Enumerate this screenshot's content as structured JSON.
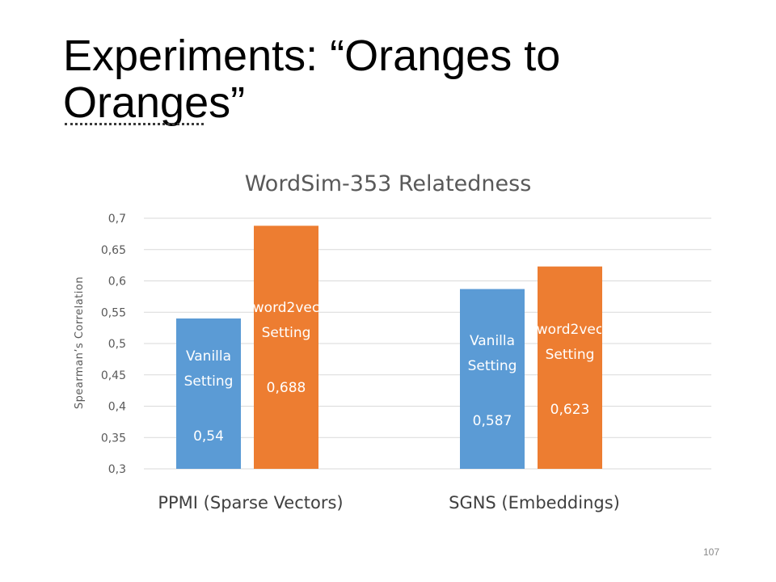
{
  "slide": {
    "title": "Experiments: “Oranges to Oranges”",
    "page_number": "107"
  },
  "colors": {
    "vanilla": "#5b9bd5",
    "word2vec": "#ed7d31",
    "grid": "#d9d9d9",
    "text": "#595959"
  },
  "chart_data": {
    "type": "bar",
    "title": "WordSim-353 Relatedness",
    "xlabel": "",
    "ylabel": "Spearman’s Correlation",
    "ylim": [
      0.3,
      0.7
    ],
    "yticks": [
      "0,3",
      "0,35",
      "0,4",
      "0,45",
      "0,5",
      "0,55",
      "0,6",
      "0,65",
      "0,7"
    ],
    "grid": true,
    "legend": "none",
    "categories": [
      "PPMI (Sparse Vectors)",
      "SGNS (Embeddings)"
    ],
    "series": [
      {
        "color": "#5b9bd5",
        "values": [
          0.54,
          0.587
        ],
        "labels": [
          [
            "Vanilla",
            "Setting",
            "0,54"
          ],
          [
            "Vanilla",
            "Setting",
            "0,587"
          ]
        ]
      },
      {
        "color": "#ed7d31",
        "values": [
          0.688,
          0.623
        ],
        "labels": [
          [
            "word2vec",
            "Setting",
            "0,688"
          ],
          [
            "word2vec",
            "Setting",
            "0,623"
          ]
        ]
      }
    ]
  }
}
